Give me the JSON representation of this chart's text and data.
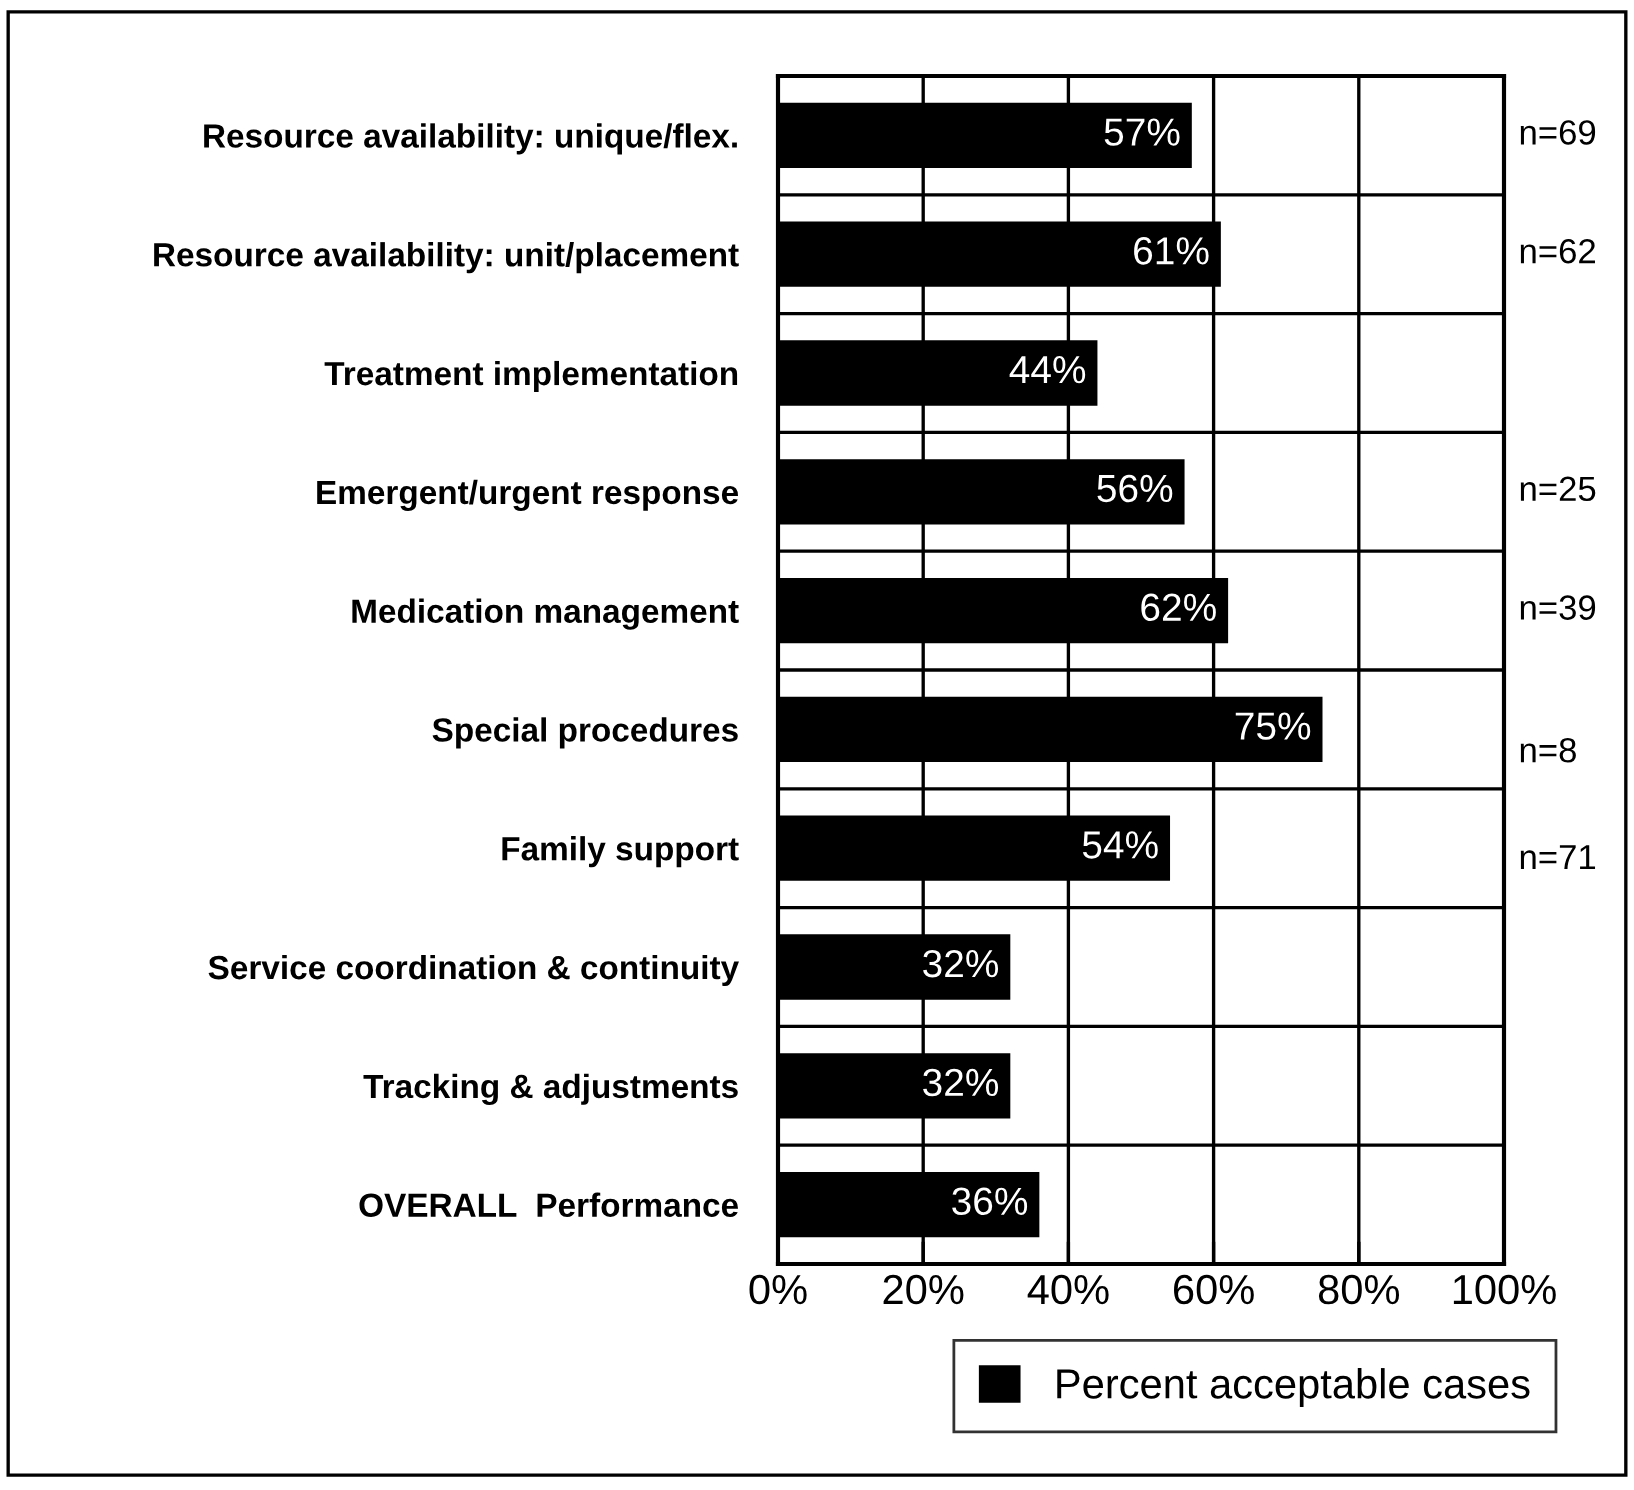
{
  "chart_data": {
    "type": "bar",
    "orientation": "horizontal",
    "categories": [
      "Resource availability: unique/flex.",
      "Resource availability: unit/placement",
      "Treatment implementation",
      "Emergent/urgent response",
      "Medication management",
      "Special procedures",
      "Family support",
      "Service coordination & continuity",
      "Tracking & adjustments",
      "OVERALL  Performance"
    ],
    "series": [
      {
        "name": "Percent acceptable cases",
        "color": "#000000",
        "values": [
          57,
          61,
          44,
          56,
          62,
          75,
          54,
          32,
          32,
          36
        ],
        "value_labels": [
          "57%",
          "61%",
          "44%",
          "56%",
          "62%",
          "75%",
          "54%",
          "32%",
          "32%",
          "36%"
        ]
      }
    ],
    "xlim": [
      0,
      100
    ],
    "xticks": [
      {
        "value": 0,
        "label": "0%"
      },
      {
        "value": 20,
        "label": "20%"
      },
      {
        "value": 40,
        "label": "40%"
      },
      {
        "value": 60,
        "label": "60%"
      },
      {
        "value": 80,
        "label": "80%"
      },
      {
        "value": 100,
        "label": "100%"
      }
    ],
    "grid": true,
    "legend": "bottom right",
    "annotations": [
      "n=69",
      "n=62",
      "n=25",
      "n=39",
      "n=8",
      "n=71"
    ]
  }
}
